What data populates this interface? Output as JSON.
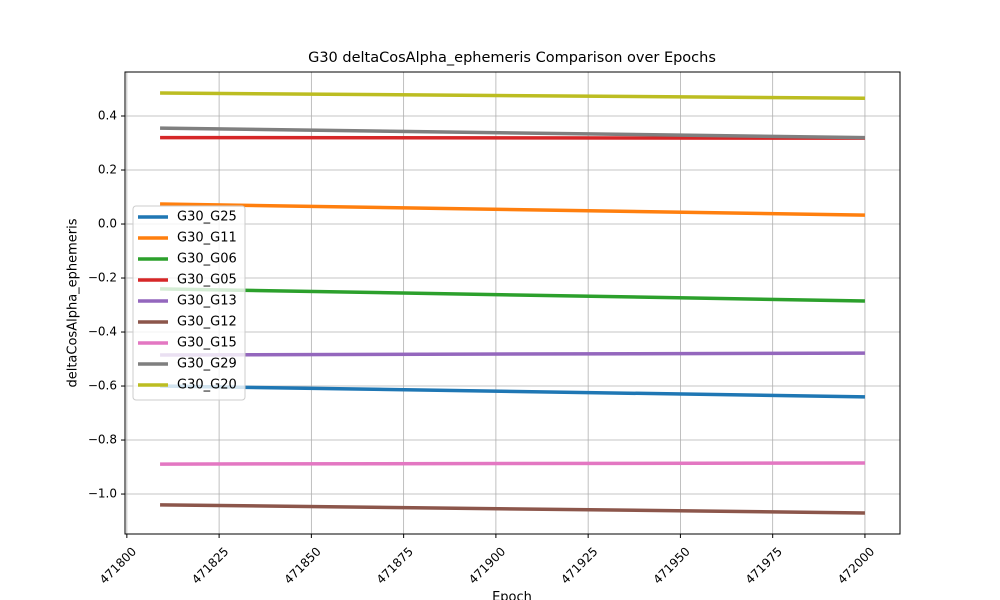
{
  "chart_data": {
    "type": "line",
    "title": "G30 deltaCosAlpha_ephemeris Comparison over Epochs",
    "xlabel": "Epoch",
    "ylabel": "deltaCosAlpha_ephemeris",
    "x": [
      471809,
      472000
    ],
    "series": [
      {
        "name": "G30_G25",
        "color": "#1f77b4",
        "values": [
          -0.6,
          -0.64
        ]
      },
      {
        "name": "G30_G11",
        "color": "#ff7f0e",
        "values": [
          0.074,
          0.033
        ]
      },
      {
        "name": "G30_G06",
        "color": "#2ca02c",
        "values": [
          -0.24,
          -0.285
        ]
      },
      {
        "name": "G30_G05",
        "color": "#d62728",
        "values": [
          0.32,
          0.318
        ]
      },
      {
        "name": "G30_G13",
        "color": "#9467bd",
        "values": [
          -0.485,
          -0.478
        ]
      },
      {
        "name": "G30_G12",
        "color": "#8c564b",
        "values": [
          -1.04,
          -1.07
        ]
      },
      {
        "name": "G30_G15",
        "color": "#e377c2",
        "values": [
          -0.889,
          -0.885
        ]
      },
      {
        "name": "G30_G29",
        "color": "#7f7f7f",
        "values": [
          0.355,
          0.32
        ]
      },
      {
        "name": "G30_G20",
        "color": "#bcbd22",
        "values": [
          0.485,
          0.466
        ]
      }
    ],
    "xlim": [
      471799.5,
      472009.5
    ],
    "xticks": [
      471800,
      471825,
      471850,
      471875,
      471900,
      471925,
      471950,
      471975,
      472000
    ],
    "ylim": [
      -1.148,
      0.563
    ],
    "yticks": [
      {
        "value": -1.0,
        "label": "−1.0"
      },
      {
        "value": -0.8,
        "label": "−0.8"
      },
      {
        "value": -0.6,
        "label": "−0.6"
      },
      {
        "value": -0.4,
        "label": "−0.4"
      },
      {
        "value": -0.2,
        "label": "−0.2"
      },
      {
        "value": 0.0,
        "label": "0.0"
      },
      0.2,
      0.4
    ],
    "grid": true,
    "legend": "center left"
  }
}
